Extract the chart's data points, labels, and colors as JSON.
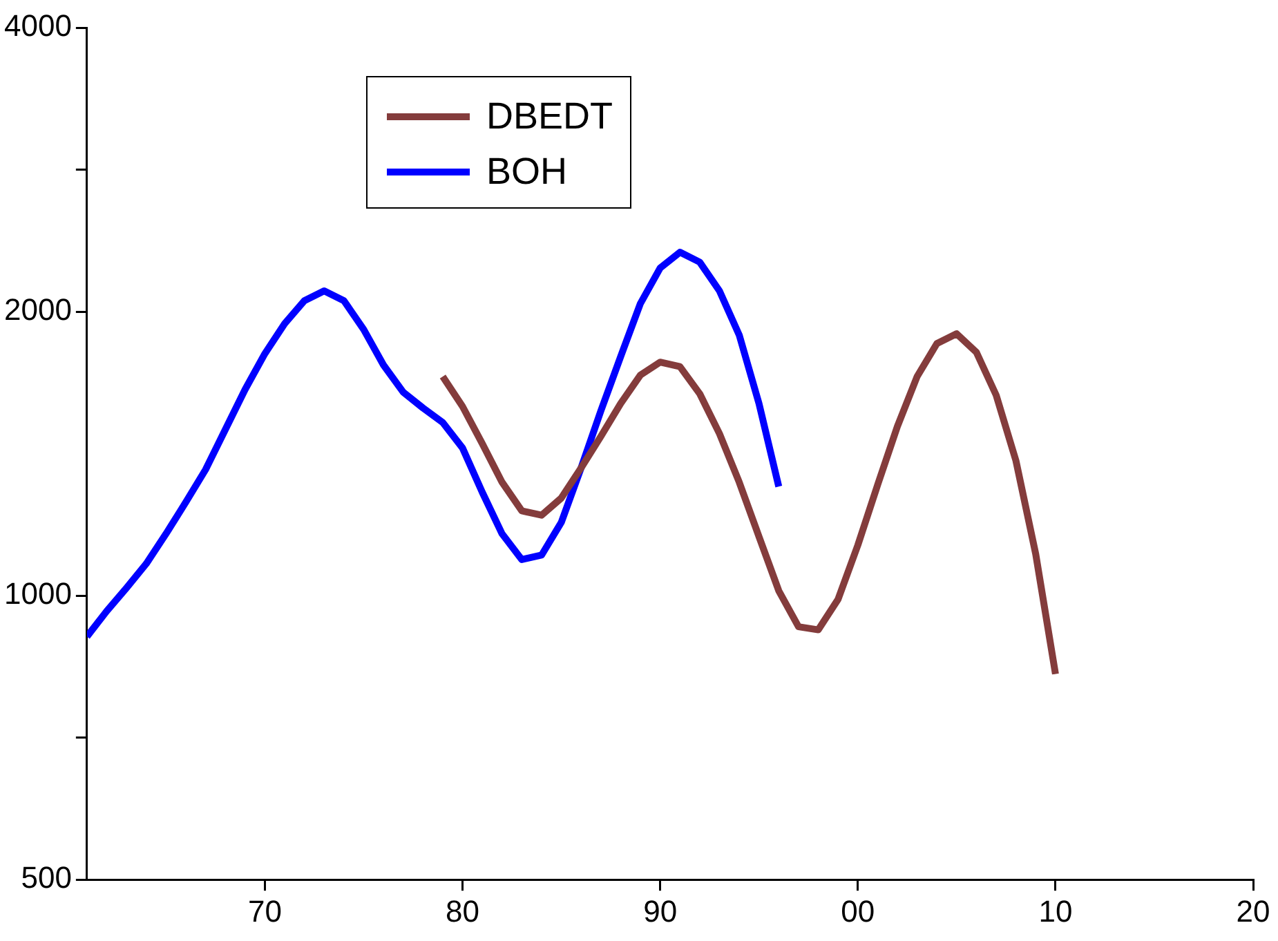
{
  "chart_data": {
    "type": "line",
    "log": "y",
    "grid": false,
    "legend": "top left",
    "marker": "none",
    "line_style": "solid",
    "xlim": [
      1961,
      2020
    ],
    "xticks": [
      {
        "value": 1970,
        "label": "70"
      },
      {
        "value": 1980,
        "label": "80"
      },
      {
        "value": 1990,
        "label": "90"
      },
      {
        "value": 2000,
        "label": "00"
      },
      {
        "value": 2010,
        "label": "10"
      },
      {
        "value": 2020,
        "label": "20"
      }
    ],
    "ylim": [
      500,
      4000
    ],
    "yticks": [
      500,
      {
        "value": 707,
        "label": null
      },
      1000,
      2000,
      {
        "value": 2828,
        "label": null
      },
      4000
    ],
    "series": [
      {
        "name": "DBEDT",
        "color": "#843c3c",
        "x": [
          1979,
          1980,
          1981,
          1982,
          1983,
          1984,
          1985,
          1986,
          1987,
          1988,
          1989,
          1990,
          1991,
          1992,
          1993,
          1994,
          1995,
          1996,
          1997,
          1998,
          1999,
          2000,
          2001,
          2002,
          2003,
          2004,
          2005,
          2006,
          2007,
          2008,
          2009,
          2010
        ],
        "values": [
          1707,
          1587,
          1449,
          1319,
          1230,
          1217,
          1269,
          1366,
          1475,
          1598,
          1713,
          1768,
          1749,
          1637,
          1485,
          1319,
          1155,
          1012,
          927,
          920,
          991,
          1131,
          1310,
          1511,
          1707,
          1850,
          1895,
          1811,
          1631,
          1390,
          1107,
          826
        ]
      },
      {
        "name": "BOH",
        "color": "#0000ff",
        "x": [
          1961,
          1962,
          1963,
          1964,
          1965,
          1966,
          1967,
          1968,
          1969,
          1970,
          1971,
          1972,
          1973,
          1974,
          1975,
          1976,
          1977,
          1978,
          1979,
          1980,
          1981,
          1982,
          1983,
          1984,
          1985,
          1986,
          1987,
          1988,
          1989,
          1990,
          1991,
          1992,
          1993,
          1994,
          1995,
          1996
        ],
        "values": [
          905,
          963,
          1019,
          1081,
          1163,
          1256,
          1360,
          1500,
          1654,
          1805,
          1942,
          2054,
          2104,
          2054,
          1915,
          1756,
          1643,
          1581,
          1526,
          1434,
          1287,
          1163,
          1092,
          1104,
          1196,
          1366,
          1570,
          1792,
          2040,
          2225,
          2312,
          2257,
          2104,
          1889,
          1598,
          1305
        ]
      }
    ]
  }
}
